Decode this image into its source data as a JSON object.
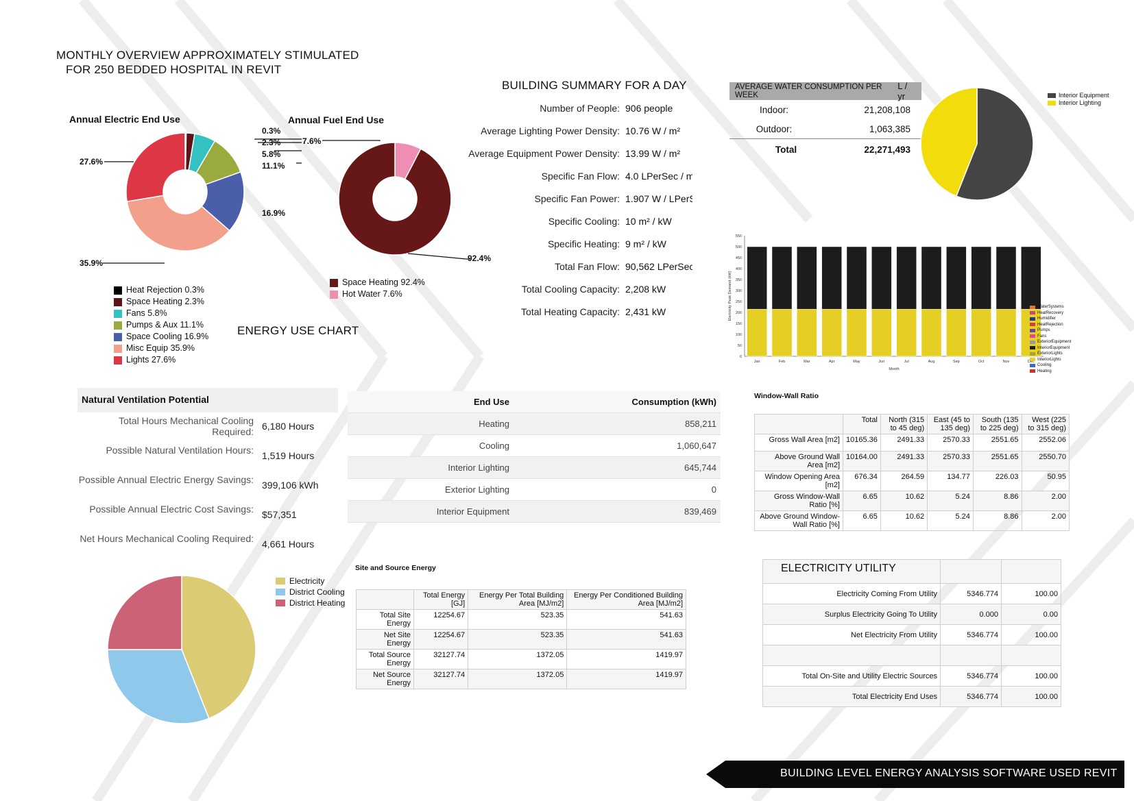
{
  "header": {
    "title_line1": "MONTHLY OVERVIEW APPROXIMATELY STIMULATED",
    "title_line2": "FOR 250 BEDDED HOSPITAL IN REVIT",
    "energy_use_chart": "ENERGY USE CHART",
    "building_summary_title": "BUILDING SUMMARY FOR A DAY",
    "footer_banner": "BUILDING  LEVEL ENERGY ANALYSIS SOFTWARE USED REVIT"
  },
  "chart_data": [
    {
      "type": "pie",
      "title": "Annual Electric End Use",
      "labels": [
        "Heat Rejection",
        "Space Heating",
        "Fans",
        "Pumps & Aux",
        "Space Cooling",
        "Misc Equip",
        "Lights"
      ],
      "label_display": [
        "Heat Rejection  0.3%",
        "Space Heating  2.3%",
        "Fans  5.8%",
        "Pumps & Aux  11.1%",
        "Space Cooling  16.9%",
        "Misc Equip  35.9%",
        "Lights  27.6%"
      ],
      "values": [
        0.3,
        2.3,
        5.8,
        11.1,
        16.9,
        35.9,
        27.6
      ],
      "value_labels": [
        "0.3%",
        "2.3%",
        "5.8%",
        "11.1%",
        "16.9%",
        "35.9%",
        "27.6%"
      ],
      "colors": [
        "#000000",
        "#5c1418",
        "#33c1c1",
        "#9aaa3c",
        "#4a5eaa",
        "#f2a08c",
        "#dd3644"
      ]
    },
    {
      "type": "pie",
      "title": "Annual Fuel End Use",
      "labels": [
        "Space Heating",
        "Hot Water"
      ],
      "label_display": [
        "Space Heating  92.4%",
        "Hot Water  7.6%"
      ],
      "values": [
        92.4,
        7.6
      ],
      "value_labels": [
        "92.4%",
        "7.6%"
      ],
      "colors": [
        "#661718",
        "#f08db2"
      ]
    },
    {
      "type": "pie",
      "title": "",
      "labels": [
        "Interior Equipment",
        "Interior Lighting"
      ],
      "values": [
        56,
        44
      ],
      "colors": [
        "#444444",
        "#f2dc0b"
      ]
    },
    {
      "type": "bar",
      "title": "",
      "xlabel": "Month",
      "ylabel": "Electricity Peak Demand (kW)",
      "categories": [
        "Jan",
        "Feb",
        "Mar",
        "Apr",
        "May",
        "Jun",
        "Jul",
        "Aug",
        "Sep",
        "Oct",
        "Nov",
        "Dec"
      ],
      "ylim": [
        0,
        550
      ],
      "yticks": [
        "0",
        "50",
        "100",
        "150",
        "200",
        "250",
        "300",
        "350",
        "400",
        "450",
        "500",
        "550"
      ],
      "series": [
        {
          "name": "Interior Lighting",
          "color": "#e6cf24",
          "values": [
            215,
            215,
            215,
            215,
            215,
            215,
            215,
            215,
            215,
            215,
            215,
            215
          ]
        },
        {
          "name": "Interior Equipment",
          "color": "#1c1c1c",
          "values": [
            285,
            285,
            285,
            285,
            285,
            285,
            285,
            285,
            285,
            285,
            285,
            285
          ]
        }
      ],
      "legend": [
        {
          "name": "WaterSystems",
          "color": "#e0782a"
        },
        {
          "name": "HeatRecovery",
          "color": "#c14a7a"
        },
        {
          "name": "Humidifier",
          "color": "#243a8a"
        },
        {
          "name": "HeatRejection",
          "color": "#d04040"
        },
        {
          "name": "Pumps",
          "color": "#6e3fa5"
        },
        {
          "name": "Fans",
          "color": "#e0459a"
        },
        {
          "name": "ExteriorEquipment",
          "color": "#9a9a9a"
        },
        {
          "name": "InteriorEquipment",
          "color": "#1c1c1c"
        },
        {
          "name": "ExteriorLights",
          "color": "#a8a030"
        },
        {
          "name": "InteriorLights",
          "color": "#e6cf24"
        },
        {
          "name": "Cooling",
          "color": "#3a6cc0"
        },
        {
          "name": "Heating",
          "color": "#d0302a"
        }
      ]
    },
    {
      "type": "pie",
      "title": "",
      "labels": [
        "Electricity",
        "District Cooling",
        "District Heating"
      ],
      "values": [
        44,
        31,
        25
      ],
      "colors": [
        "#dccb75",
        "#8ec9eb",
        "#cc6275"
      ]
    }
  ],
  "building_summary": [
    {
      "label": "Number of People:",
      "value": "906 people"
    },
    {
      "label": "Average Lighting Power Density:",
      "value": "10.76 W / m²"
    },
    {
      "label": "Average Equipment Power Density:",
      "value": "13.99 W / m²"
    },
    {
      "label": "Specific Fan Flow:",
      "value": "4.0 LPerSec / m"
    },
    {
      "label": "Specific Fan Power:",
      "value": "1.907 W / LPerS"
    },
    {
      "label": "Specific Cooling:",
      "value": "10 m² / kW"
    },
    {
      "label": "Specific Heating:",
      "value": "9 m² / kW"
    },
    {
      "label": "Total Fan Flow:",
      "value": "90,562 LPerSec"
    },
    {
      "label": "Total Cooling Capacity:",
      "value": "2,208 kW"
    },
    {
      "label": "Total Heating Capacity:",
      "value": "2,431 kW"
    }
  ],
  "water": {
    "header": "AVERAGE WATER CONSUMPTION PER WEEK",
    "unit": "L / yr",
    "rows": [
      {
        "label": "Indoor:",
        "value": "21,208,108"
      },
      {
        "label": "Outdoor:",
        "value": "1,063,385"
      },
      {
        "label": "Total",
        "value": "22,271,493"
      }
    ]
  },
  "natural_ventilation": {
    "title": "Natural Ventilation Potential",
    "rows": [
      {
        "label": "Total Hours Mechanical Cooling Required:",
        "value": "6,180 Hours"
      },
      {
        "label": "Possible Natural Ventilation Hours:",
        "value": "1,519 Hours"
      },
      {
        "label": "Possible Annual Electric Energy Savings:",
        "value": "399,106 kWh"
      },
      {
        "label": "Possible Annual Electric Cost Savings:",
        "value": "$57,351"
      },
      {
        "label": "Net Hours Mechanical Cooling Required:",
        "value": "4,661 Hours"
      }
    ]
  },
  "end_use_table": {
    "headers": [
      "End Use",
      "Consumption (kWh)"
    ],
    "rows": [
      [
        "Heating",
        "858,211"
      ],
      [
        "Cooling",
        "1,060,647"
      ],
      [
        "Interior Lighting",
        "645,744"
      ],
      [
        "Exterior Lighting",
        "0"
      ],
      [
        "Interior Equipment",
        "839,469"
      ]
    ]
  },
  "window_wall": {
    "title": "Window-Wall Ratio",
    "headers": [
      "",
      "Total",
      "North (315 to 45 deg)",
      "East (45 to 135 deg)",
      "South (135 to 225 deg)",
      "West (225 to 315 deg)"
    ],
    "rows": [
      [
        "Gross Wall Area [m2]",
        "10165.36",
        "2491.33",
        "2570.33",
        "2551.65",
        "2552.06"
      ],
      [
        "Above Ground Wall Area [m2]",
        "10164.00",
        "2491.33",
        "2570.33",
        "2551.65",
        "2550.70"
      ],
      [
        "Window Opening Area [m2]",
        "676.34",
        "264.59",
        "134.77",
        "226.03",
        "50.95"
      ],
      [
        "Gross Window-Wall Ratio [%]",
        "6.65",
        "10.62",
        "5.24",
        "8.86",
        "2.00"
      ],
      [
        "Above Ground Window-Wall Ratio [%]",
        "6.65",
        "10.62",
        "5.24",
        "8.86",
        "2.00"
      ]
    ]
  },
  "site_source": {
    "title": "Site and Source Energy",
    "headers": [
      "",
      "Total Energy [GJ]",
      "Energy Per Total Building Area [MJ/m2]",
      "Energy Per Conditioned Building Area [MJ/m2]"
    ],
    "rows": [
      [
        "Total Site Energy",
        "12254.67",
        "523.35",
        "541.63"
      ],
      [
        "Net Site Energy",
        "12254.67",
        "523.35",
        "541.63"
      ],
      [
        "Total Source Energy",
        "32127.74",
        "1372.05",
        "1419.97"
      ],
      [
        "Net Source Energy",
        "32127.74",
        "1372.05",
        "1419.97"
      ]
    ]
  },
  "electricity_utility": {
    "title": "ELECTRICITY UTILITY",
    "rows": [
      [
        "Electricity Coming From Utility",
        "5346.774",
        "100.00"
      ],
      [
        "Surplus Electricity Going To Utility",
        "0.000",
        "0.00"
      ],
      [
        "Net Electricity From Utility",
        "5346.774",
        "100.00"
      ],
      [
        "",
        "",
        ""
      ],
      [
        "Total On-Site and Utility Electric Sources",
        "5346.774",
        "100.00"
      ],
      [
        "Total Electricity End Uses",
        "5346.774",
        "100.00"
      ]
    ]
  }
}
